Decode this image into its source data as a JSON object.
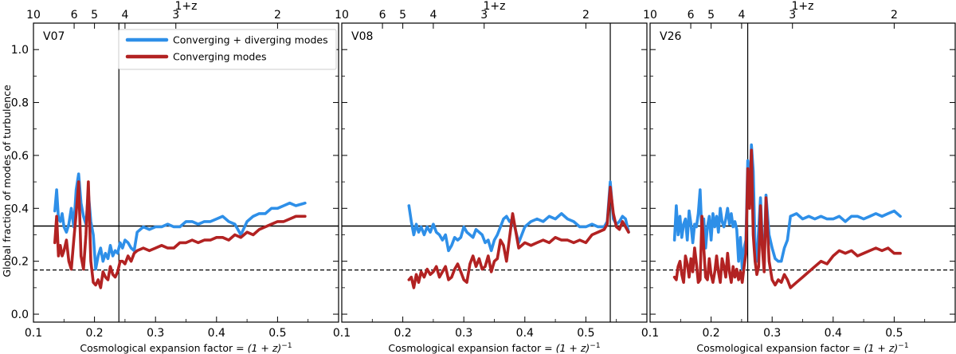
{
  "figure": {
    "ylabel": "Global fraction of modes of turbulence",
    "top_axis_label": "1+z",
    "xlabel_parts": [
      "Cosmological expansion factor = ",
      "(1 + z)",
      "−1"
    ]
  },
  "legend": [
    {
      "label": "Converging + diverging modes",
      "color": "#2e8fe8"
    },
    {
      "label": "Converging modes",
      "color": "#b22222"
    }
  ],
  "colors": {
    "total": "#2e8fe8",
    "converging": "#b22222",
    "axes": "#000000"
  },
  "chart_data": [
    {
      "type": "line",
      "panel": "V07",
      "xlim": [
        0.1,
        0.6
      ],
      "ylim": [
        -0.03,
        1.1
      ],
      "x_ticks": [
        0.1,
        0.2,
        0.3,
        0.4,
        0.5
      ],
      "y_ticks": [
        0.0,
        0.2,
        0.4,
        0.6,
        0.8,
        1.0
      ],
      "top_ticks": [
        10,
        6,
        5,
        4,
        3,
        2
      ],
      "reference_lines": {
        "solid": 0.333,
        "dashed": 0.167
      },
      "vertical_line_x": 0.24,
      "series": [
        {
          "name": "Converging + diverging modes",
          "x": [
            0.135,
            0.138,
            0.141,
            0.144,
            0.147,
            0.15,
            0.154,
            0.158,
            0.162,
            0.166,
            0.17,
            0.174,
            0.178,
            0.182,
            0.186,
            0.19,
            0.194,
            0.198,
            0.202,
            0.206,
            0.21,
            0.214,
            0.218,
            0.222,
            0.226,
            0.23,
            0.234,
            0.238,
            0.242,
            0.246,
            0.25,
            0.255,
            0.26,
            0.265,
            0.27,
            0.28,
            0.29,
            0.3,
            0.31,
            0.32,
            0.33,
            0.34,
            0.35,
            0.36,
            0.37,
            0.38,
            0.39,
            0.4,
            0.41,
            0.42,
            0.43,
            0.44,
            0.45,
            0.46,
            0.47,
            0.48,
            0.49,
            0.5,
            0.51,
            0.52,
            0.53,
            0.545
          ],
          "values": [
            0.39,
            0.47,
            0.36,
            0.35,
            0.38,
            0.33,
            0.31,
            0.34,
            0.4,
            0.33,
            0.47,
            0.53,
            0.42,
            0.37,
            0.34,
            0.46,
            0.35,
            0.3,
            0.17,
            0.22,
            0.25,
            0.2,
            0.23,
            0.21,
            0.26,
            0.22,
            0.24,
            0.23,
            0.27,
            0.25,
            0.28,
            0.27,
            0.25,
            0.24,
            0.31,
            0.33,
            0.32,
            0.33,
            0.33,
            0.34,
            0.33,
            0.33,
            0.35,
            0.35,
            0.34,
            0.35,
            0.35,
            0.36,
            0.37,
            0.35,
            0.34,
            0.3,
            0.35,
            0.37,
            0.38,
            0.38,
            0.4,
            0.4,
            0.41,
            0.42,
            0.41,
            0.42
          ]
        },
        {
          "name": "Converging modes",
          "x": [
            0.135,
            0.138,
            0.141,
            0.144,
            0.147,
            0.15,
            0.154,
            0.158,
            0.162,
            0.166,
            0.17,
            0.174,
            0.178,
            0.182,
            0.186,
            0.19,
            0.194,
            0.198,
            0.202,
            0.206,
            0.21,
            0.214,
            0.218,
            0.222,
            0.226,
            0.23,
            0.234,
            0.238,
            0.242,
            0.246,
            0.25,
            0.255,
            0.26,
            0.265,
            0.27,
            0.28,
            0.29,
            0.3,
            0.31,
            0.32,
            0.33,
            0.34,
            0.35,
            0.36,
            0.37,
            0.38,
            0.39,
            0.4,
            0.41,
            0.42,
            0.43,
            0.44,
            0.45,
            0.46,
            0.47,
            0.48,
            0.49,
            0.5,
            0.51,
            0.52,
            0.53,
            0.545
          ],
          "values": [
            0.27,
            0.37,
            0.22,
            0.26,
            0.22,
            0.24,
            0.28,
            0.2,
            0.17,
            0.28,
            0.38,
            0.5,
            0.22,
            0.17,
            0.3,
            0.5,
            0.2,
            0.12,
            0.11,
            0.13,
            0.1,
            0.16,
            0.14,
            0.13,
            0.18,
            0.15,
            0.14,
            0.16,
            0.2,
            0.2,
            0.19,
            0.22,
            0.2,
            0.23,
            0.24,
            0.25,
            0.24,
            0.25,
            0.26,
            0.25,
            0.25,
            0.27,
            0.27,
            0.28,
            0.27,
            0.28,
            0.28,
            0.29,
            0.29,
            0.28,
            0.3,
            0.29,
            0.31,
            0.3,
            0.32,
            0.33,
            0.34,
            0.35,
            0.35,
            0.36,
            0.37,
            0.37
          ]
        }
      ]
    },
    {
      "type": "line",
      "panel": "V08",
      "xlim": [
        0.1,
        0.6
      ],
      "ylim": [
        -0.03,
        1.1
      ],
      "x_ticks": [
        0.1,
        0.2,
        0.3,
        0.4,
        0.5
      ],
      "y_ticks": [
        0.0,
        0.2,
        0.4,
        0.6,
        0.8,
        1.0
      ],
      "top_ticks": [
        10,
        6,
        5,
        4,
        3,
        2
      ],
      "reference_lines": {
        "solid": 0.333,
        "dashed": 0.167
      },
      "vertical_line_x": 0.54,
      "series": [
        {
          "name": "Converging + diverging modes",
          "x": [
            0.21,
            0.214,
            0.218,
            0.222,
            0.226,
            0.23,
            0.235,
            0.24,
            0.245,
            0.25,
            0.255,
            0.26,
            0.265,
            0.27,
            0.275,
            0.28,
            0.285,
            0.29,
            0.295,
            0.3,
            0.305,
            0.31,
            0.315,
            0.32,
            0.325,
            0.33,
            0.335,
            0.34,
            0.345,
            0.35,
            0.355,
            0.36,
            0.365,
            0.37,
            0.375,
            0.38,
            0.39,
            0.4,
            0.41,
            0.42,
            0.43,
            0.44,
            0.45,
            0.46,
            0.47,
            0.48,
            0.49,
            0.5,
            0.51,
            0.52,
            0.53,
            0.535,
            0.54,
            0.545,
            0.55,
            0.555,
            0.56,
            0.565,
            0.57
          ],
          "values": [
            0.41,
            0.35,
            0.3,
            0.34,
            0.31,
            0.33,
            0.3,
            0.33,
            0.31,
            0.34,
            0.31,
            0.3,
            0.28,
            0.3,
            0.24,
            0.26,
            0.29,
            0.28,
            0.29,
            0.33,
            0.31,
            0.3,
            0.29,
            0.32,
            0.31,
            0.3,
            0.27,
            0.28,
            0.24,
            0.28,
            0.3,
            0.33,
            0.36,
            0.37,
            0.35,
            0.36,
            0.27,
            0.33,
            0.35,
            0.36,
            0.35,
            0.37,
            0.36,
            0.38,
            0.36,
            0.35,
            0.33,
            0.33,
            0.34,
            0.33,
            0.33,
            0.35,
            0.5,
            0.36,
            0.34,
            0.35,
            0.37,
            0.36,
            0.31
          ]
        },
        {
          "name": "Converging modes",
          "x": [
            0.21,
            0.214,
            0.218,
            0.222,
            0.226,
            0.23,
            0.235,
            0.24,
            0.245,
            0.25,
            0.255,
            0.26,
            0.265,
            0.27,
            0.275,
            0.28,
            0.285,
            0.29,
            0.295,
            0.3,
            0.305,
            0.31,
            0.315,
            0.32,
            0.325,
            0.33,
            0.335,
            0.34,
            0.345,
            0.35,
            0.355,
            0.36,
            0.365,
            0.37,
            0.375,
            0.38,
            0.39,
            0.4,
            0.41,
            0.42,
            0.43,
            0.44,
            0.45,
            0.46,
            0.47,
            0.48,
            0.49,
            0.5,
            0.51,
            0.52,
            0.53,
            0.535,
            0.54,
            0.545,
            0.55,
            0.555,
            0.56,
            0.565,
            0.57
          ],
          "values": [
            0.13,
            0.14,
            0.1,
            0.15,
            0.12,
            0.16,
            0.14,
            0.17,
            0.15,
            0.16,
            0.18,
            0.14,
            0.16,
            0.18,
            0.13,
            0.14,
            0.17,
            0.19,
            0.16,
            0.13,
            0.12,
            0.19,
            0.22,
            0.18,
            0.21,
            0.17,
            0.18,
            0.22,
            0.16,
            0.2,
            0.21,
            0.28,
            0.26,
            0.2,
            0.29,
            0.38,
            0.25,
            0.27,
            0.26,
            0.27,
            0.28,
            0.27,
            0.29,
            0.28,
            0.28,
            0.27,
            0.28,
            0.27,
            0.3,
            0.31,
            0.32,
            0.34,
            0.48,
            0.38,
            0.33,
            0.32,
            0.35,
            0.33,
            0.31
          ]
        }
      ]
    },
    {
      "type": "line",
      "panel": "V26",
      "xlim": [
        0.1,
        0.6
      ],
      "ylim": [
        -0.03,
        1.1
      ],
      "x_ticks": [
        0.1,
        0.2,
        0.3,
        0.4,
        0.5
      ],
      "y_ticks": [
        0.0,
        0.2,
        0.4,
        0.6,
        0.8,
        1.0
      ],
      "top_ticks": [
        10,
        6,
        5,
        4,
        3,
        2
      ],
      "reference_lines": {
        "solid": 0.333,
        "dashed": 0.167
      },
      "vertical_line_x": 0.26,
      "series": [
        {
          "name": "Converging + diverging modes",
          "x": [
            0.14,
            0.143,
            0.146,
            0.149,
            0.152,
            0.155,
            0.158,
            0.161,
            0.164,
            0.167,
            0.17,
            0.173,
            0.176,
            0.179,
            0.182,
            0.185,
            0.188,
            0.191,
            0.194,
            0.197,
            0.2,
            0.203,
            0.206,
            0.209,
            0.212,
            0.215,
            0.218,
            0.221,
            0.224,
            0.227,
            0.23,
            0.233,
            0.236,
            0.239,
            0.242,
            0.245,
            0.248,
            0.251,
            0.254,
            0.257,
            0.26,
            0.263,
            0.266,
            0.269,
            0.272,
            0.275,
            0.278,
            0.281,
            0.284,
            0.287,
            0.29,
            0.295,
            0.3,
            0.305,
            0.31,
            0.315,
            0.32,
            0.325,
            0.33,
            0.34,
            0.35,
            0.36,
            0.37,
            0.38,
            0.39,
            0.4,
            0.41,
            0.42,
            0.43,
            0.44,
            0.45,
            0.46,
            0.47,
            0.48,
            0.49,
            0.5,
            0.51
          ],
          "values": [
            0.28,
            0.41,
            0.3,
            0.37,
            0.29,
            0.34,
            0.36,
            0.28,
            0.39,
            0.34,
            0.27,
            0.34,
            0.33,
            0.38,
            0.47,
            0.3,
            0.36,
            0.25,
            0.33,
            0.37,
            0.28,
            0.38,
            0.33,
            0.37,
            0.31,
            0.4,
            0.35,
            0.33,
            0.36,
            0.4,
            0.34,
            0.38,
            0.33,
            0.35,
            0.32,
            0.2,
            0.29,
            0.17,
            0.25,
            0.28,
            0.58,
            0.45,
            0.64,
            0.54,
            0.25,
            0.2,
            0.32,
            0.44,
            0.28,
            0.18,
            0.45,
            0.3,
            0.25,
            0.21,
            0.2,
            0.2,
            0.25,
            0.28,
            0.37,
            0.38,
            0.36,
            0.37,
            0.36,
            0.37,
            0.36,
            0.36,
            0.37,
            0.35,
            0.37,
            0.37,
            0.36,
            0.37,
            0.38,
            0.37,
            0.38,
            0.39,
            0.37
          ]
        },
        {
          "name": "Converging modes",
          "x": [
            0.14,
            0.143,
            0.146,
            0.149,
            0.152,
            0.155,
            0.158,
            0.161,
            0.164,
            0.167,
            0.17,
            0.173,
            0.176,
            0.179,
            0.182,
            0.185,
            0.188,
            0.191,
            0.194,
            0.197,
            0.2,
            0.203,
            0.206,
            0.209,
            0.212,
            0.215,
            0.218,
            0.221,
            0.224,
            0.227,
            0.23,
            0.233,
            0.236,
            0.239,
            0.242,
            0.245,
            0.248,
            0.251,
            0.254,
            0.257,
            0.26,
            0.263,
            0.266,
            0.269,
            0.272,
            0.275,
            0.278,
            0.281,
            0.284,
            0.287,
            0.29,
            0.295,
            0.3,
            0.305,
            0.31,
            0.315,
            0.32,
            0.325,
            0.33,
            0.34,
            0.35,
            0.36,
            0.37,
            0.38,
            0.39,
            0.4,
            0.41,
            0.42,
            0.43,
            0.44,
            0.45,
            0.46,
            0.47,
            0.48,
            0.49,
            0.5,
            0.51
          ],
          "values": [
            0.14,
            0.13,
            0.18,
            0.2,
            0.15,
            0.12,
            0.22,
            0.19,
            0.14,
            0.21,
            0.16,
            0.25,
            0.19,
            0.12,
            0.13,
            0.37,
            0.25,
            0.14,
            0.13,
            0.21,
            0.15,
            0.12,
            0.16,
            0.22,
            0.16,
            0.12,
            0.21,
            0.18,
            0.14,
            0.23,
            0.16,
            0.12,
            0.18,
            0.14,
            0.17,
            0.13,
            0.16,
            0.12,
            0.18,
            0.23,
            0.55,
            0.4,
            0.62,
            0.3,
            0.2,
            0.15,
            0.18,
            0.41,
            0.25,
            0.16,
            0.44,
            0.2,
            0.13,
            0.11,
            0.13,
            0.12,
            0.15,
            0.13,
            0.1,
            0.12,
            0.14,
            0.16,
            0.18,
            0.2,
            0.19,
            0.22,
            0.24,
            0.23,
            0.24,
            0.22,
            0.23,
            0.24,
            0.25,
            0.24,
            0.25,
            0.23,
            0.23
          ]
        }
      ]
    }
  ]
}
